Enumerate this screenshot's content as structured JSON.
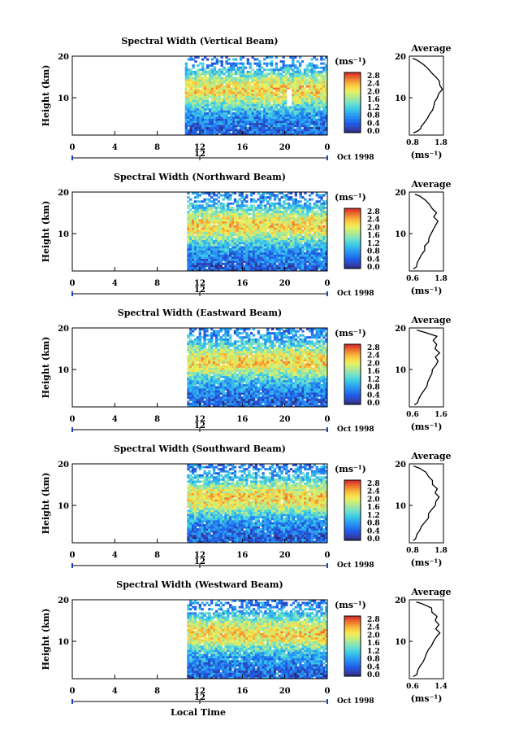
{
  "figure": {
    "xlabel": "Local Time",
    "date_label": "Oct 1998",
    "colorbar_unit": "(ms⁻¹)",
    "avg_title": "Average",
    "avg_xunit": "(ms⁻¹)",
    "ylabel": "Height (km)"
  },
  "chart_data": [
    {
      "type": "heatmap",
      "title": "Spectral Width (Vertical Beam)",
      "xlabel": "",
      "ylabel": "Height (km)",
      "x_ticks": [
        "0",
        "4",
        "8",
        "12",
        "16",
        "20",
        "0"
      ],
      "secondary_x_tick": "12",
      "y_ticks": [
        "20",
        "10"
      ],
      "xlim": [
        0,
        24
      ],
      "ylim": [
        1,
        20
      ],
      "data_start_hour": 10.6,
      "colorbar": {
        "label": "(ms⁻¹)",
        "ticks": [
          "2.8",
          "2.4",
          "2.0",
          "1.6",
          "1.2",
          "0.8",
          "0.4",
          "0.0"
        ],
        "range": [
          0,
          3.0
        ]
      },
      "average_profile": {
        "title": "Average",
        "xlabel": "(ms⁻¹)",
        "x_ticks": [
          "0.8",
          "1.8"
        ],
        "xlim": [
          0.6,
          1.9
        ],
        "y_ticks": [
          "20",
          "10"
        ],
        "heights": [
          1.5,
          2,
          2.5,
          3,
          4,
          5,
          6,
          7,
          8,
          9,
          10,
          11,
          12,
          13,
          14,
          15,
          16,
          17,
          18,
          19,
          19.5
        ],
        "values": [
          0.75,
          0.9,
          1.0,
          1.05,
          1.15,
          1.25,
          1.35,
          1.45,
          1.55,
          1.6,
          1.7,
          1.75,
          1.85,
          1.8,
          1.75,
          1.6,
          1.45,
          1.3,
          1.1,
          0.9,
          0.75
        ]
      }
    },
    {
      "type": "heatmap",
      "title": "Spectral Width (Northward Beam)",
      "xlabel": "",
      "ylabel": "Height (km)",
      "x_ticks": [
        "0",
        "4",
        "8",
        "12",
        "16",
        "20",
        "0"
      ],
      "secondary_x_tick": "12",
      "y_ticks": [
        "20",
        "10"
      ],
      "xlim": [
        0,
        24
      ],
      "ylim": [
        1,
        20
      ],
      "data_start_hour": 10.8,
      "colorbar": {
        "label": "(ms⁻¹)",
        "ticks": [
          "2.8",
          "2.4",
          "2.0",
          "1.6",
          "1.2",
          "0.8",
          "0.4",
          "0.0"
        ],
        "range": [
          0,
          3.0
        ]
      },
      "average_profile": {
        "title": "Average",
        "xlabel": "(ms⁻¹)",
        "x_ticks": [
          "0.6",
          "1.8"
        ],
        "xlim": [
          0.5,
          1.9
        ],
        "y_ticks": [
          "20",
          "10"
        ],
        "heights": [
          1.5,
          2,
          3,
          4,
          5,
          6,
          7,
          8,
          9,
          10,
          11,
          12,
          13,
          14,
          15,
          16,
          17,
          18,
          19,
          19.5
        ],
        "values": [
          0.7,
          0.8,
          0.85,
          0.9,
          1.0,
          1.1,
          1.15,
          1.25,
          1.3,
          1.4,
          1.5,
          1.55,
          1.65,
          1.5,
          1.6,
          1.45,
          1.3,
          1.2,
          0.95,
          0.75
        ]
      }
    },
    {
      "type": "heatmap",
      "title": "Spectral Width (Eastward Beam)",
      "xlabel": "",
      "ylabel": "Height (km)",
      "x_ticks": [
        "0",
        "4",
        "8",
        "12",
        "16",
        "20",
        "0"
      ],
      "secondary_x_tick": "12",
      "y_ticks": [
        "20",
        "10"
      ],
      "xlim": [
        0,
        24
      ],
      "ylim": [
        1,
        20
      ],
      "data_start_hour": 10.8,
      "colorbar": {
        "label": "(ms⁻¹)",
        "ticks": [
          "2.8",
          "2.4",
          "2.0",
          "1.6",
          "1.2",
          "0.8",
          "0.4",
          "0.0"
        ],
        "range": [
          0,
          3.0
        ]
      },
      "average_profile": {
        "title": "Average",
        "xlabel": "(ms⁻¹)",
        "x_ticks": [
          "0.6",
          "1.6"
        ],
        "xlim": [
          0.5,
          1.7
        ],
        "y_ticks": [
          "20",
          "10"
        ],
        "heights": [
          1.5,
          2,
          3,
          4,
          5,
          6,
          7,
          8,
          9,
          10,
          11,
          12,
          13,
          14,
          15,
          16,
          17,
          18,
          19,
          19.5
        ],
        "values": [
          0.7,
          0.8,
          0.85,
          0.9,
          1.0,
          1.1,
          1.15,
          1.25,
          1.3,
          1.35,
          1.45,
          1.5,
          1.45,
          1.55,
          1.4,
          1.5,
          1.35,
          1.45,
          1.0,
          0.8
        ]
      }
    },
    {
      "type": "heatmap",
      "title": "Spectral Width (Southward Beam)",
      "xlabel": "",
      "ylabel": "Height (km)",
      "x_ticks": [
        "0",
        "4",
        "8",
        "12",
        "16",
        "20",
        "0"
      ],
      "secondary_x_tick": "12",
      "y_ticks": [
        "20",
        "10"
      ],
      "xlim": [
        0,
        24
      ],
      "ylim": [
        1,
        20
      ],
      "data_start_hour": 10.8,
      "colorbar": {
        "label": "(ms⁻¹)",
        "ticks": [
          "2.8",
          "2.4",
          "2.0",
          "1.6",
          "1.2",
          "0.8",
          "0.4",
          "0.0"
        ],
        "range": [
          0,
          3.0
        ]
      },
      "average_profile": {
        "title": "Average",
        "xlabel": "(ms⁻¹)",
        "x_ticks": [
          "0.8",
          "1.8"
        ],
        "xlim": [
          0.6,
          1.9
        ],
        "y_ticks": [
          "20",
          "10"
        ],
        "heights": [
          1.5,
          2,
          3,
          4,
          5,
          6,
          7,
          8,
          9,
          10,
          11,
          12,
          13,
          14,
          15,
          16,
          17,
          18,
          19,
          19.5
        ],
        "values": [
          0.75,
          0.85,
          0.9,
          1.0,
          1.1,
          1.2,
          1.3,
          1.35,
          1.45,
          1.55,
          1.6,
          1.7,
          1.55,
          1.7,
          1.5,
          1.45,
          1.3,
          1.2,
          0.95,
          0.8
        ]
      }
    },
    {
      "type": "heatmap",
      "title": "Spectral Width (Westward Beam)",
      "xlabel": "Local Time",
      "ylabel": "Height (km)",
      "x_ticks": [
        "0",
        "4",
        "8",
        "12",
        "16",
        "20",
        "0"
      ],
      "secondary_x_tick": "12",
      "y_ticks": [
        "20",
        "10"
      ],
      "xlim": [
        0,
        24
      ],
      "ylim": [
        1,
        20
      ],
      "data_start_hour": 10.8,
      "colorbar": {
        "label": "(ms⁻¹)",
        "ticks": [
          "2.8",
          "2.4",
          "2.0",
          "1.6",
          "1.2",
          "0.8",
          "0.4",
          "0.0"
        ],
        "range": [
          0,
          3.0
        ]
      },
      "average_profile": {
        "title": "Average",
        "xlabel": "(ms⁻¹)",
        "x_ticks": [
          "0.6",
          "1.4"
        ],
        "xlim": [
          0.5,
          1.6
        ],
        "y_ticks": [
          "20",
          "10"
        ],
        "heights": [
          1.5,
          2,
          3,
          4,
          5,
          6,
          7,
          8,
          9,
          10,
          11,
          12,
          13,
          14,
          15,
          16,
          17,
          18,
          19,
          19.5
        ],
        "values": [
          0.65,
          0.7,
          0.75,
          0.85,
          0.9,
          1.0,
          1.05,
          1.15,
          1.2,
          1.3,
          1.4,
          1.45,
          1.35,
          1.45,
          1.3,
          1.4,
          1.2,
          1.25,
          0.9,
          0.7
        ]
      }
    }
  ]
}
